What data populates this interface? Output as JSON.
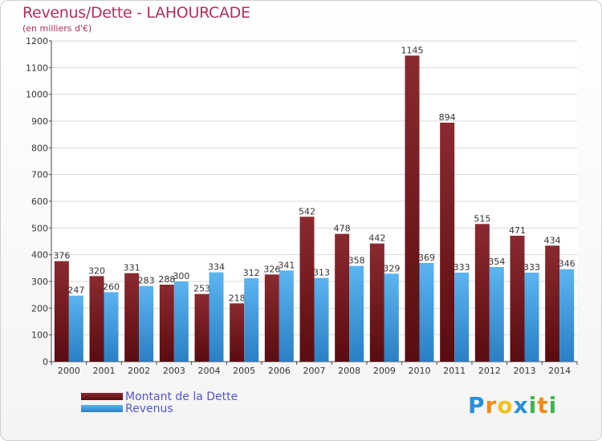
{
  "chart_data": {
    "type": "bar",
    "title": "Revenus/Dette - LAHOURCADE",
    "subtitle": "(en milliers d'€)",
    "categories": [
      "2000",
      "2001",
      "2002",
      "2003",
      "2004",
      "2005",
      "2006",
      "2007",
      "2008",
      "2009",
      "2010",
      "2011",
      "2012",
      "2013",
      "2014"
    ],
    "series": [
      {
        "name": "Montant de la Dette",
        "color": "#7a1f24",
        "values": [
          376,
          320,
          331,
          288,
          253,
          218,
          326,
          542,
          478,
          442,
          1145,
          894,
          515,
          471,
          434
        ]
      },
      {
        "name": "Revenus",
        "color": "#3d9be0",
        "values": [
          247,
          260,
          283,
          300,
          334,
          312,
          341,
          313,
          358,
          329,
          369,
          333,
          354,
          333,
          346
        ]
      }
    ],
    "ylim": [
      0,
      1200
    ],
    "yticks": [
      0,
      100,
      200,
      300,
      400,
      500,
      600,
      700,
      800,
      900,
      1000,
      1100,
      1200
    ],
    "grid": true,
    "legend_position": "bottom-left"
  },
  "logo": {
    "letters": [
      "P",
      "r",
      "o",
      "x",
      "i",
      "t",
      "i"
    ],
    "colors": [
      "#2a8fd8",
      "#f28a1c",
      "#f2c21c",
      "#2a8fd8",
      "#3cb54a",
      "#f28a1c",
      "#3cb54a"
    ]
  }
}
